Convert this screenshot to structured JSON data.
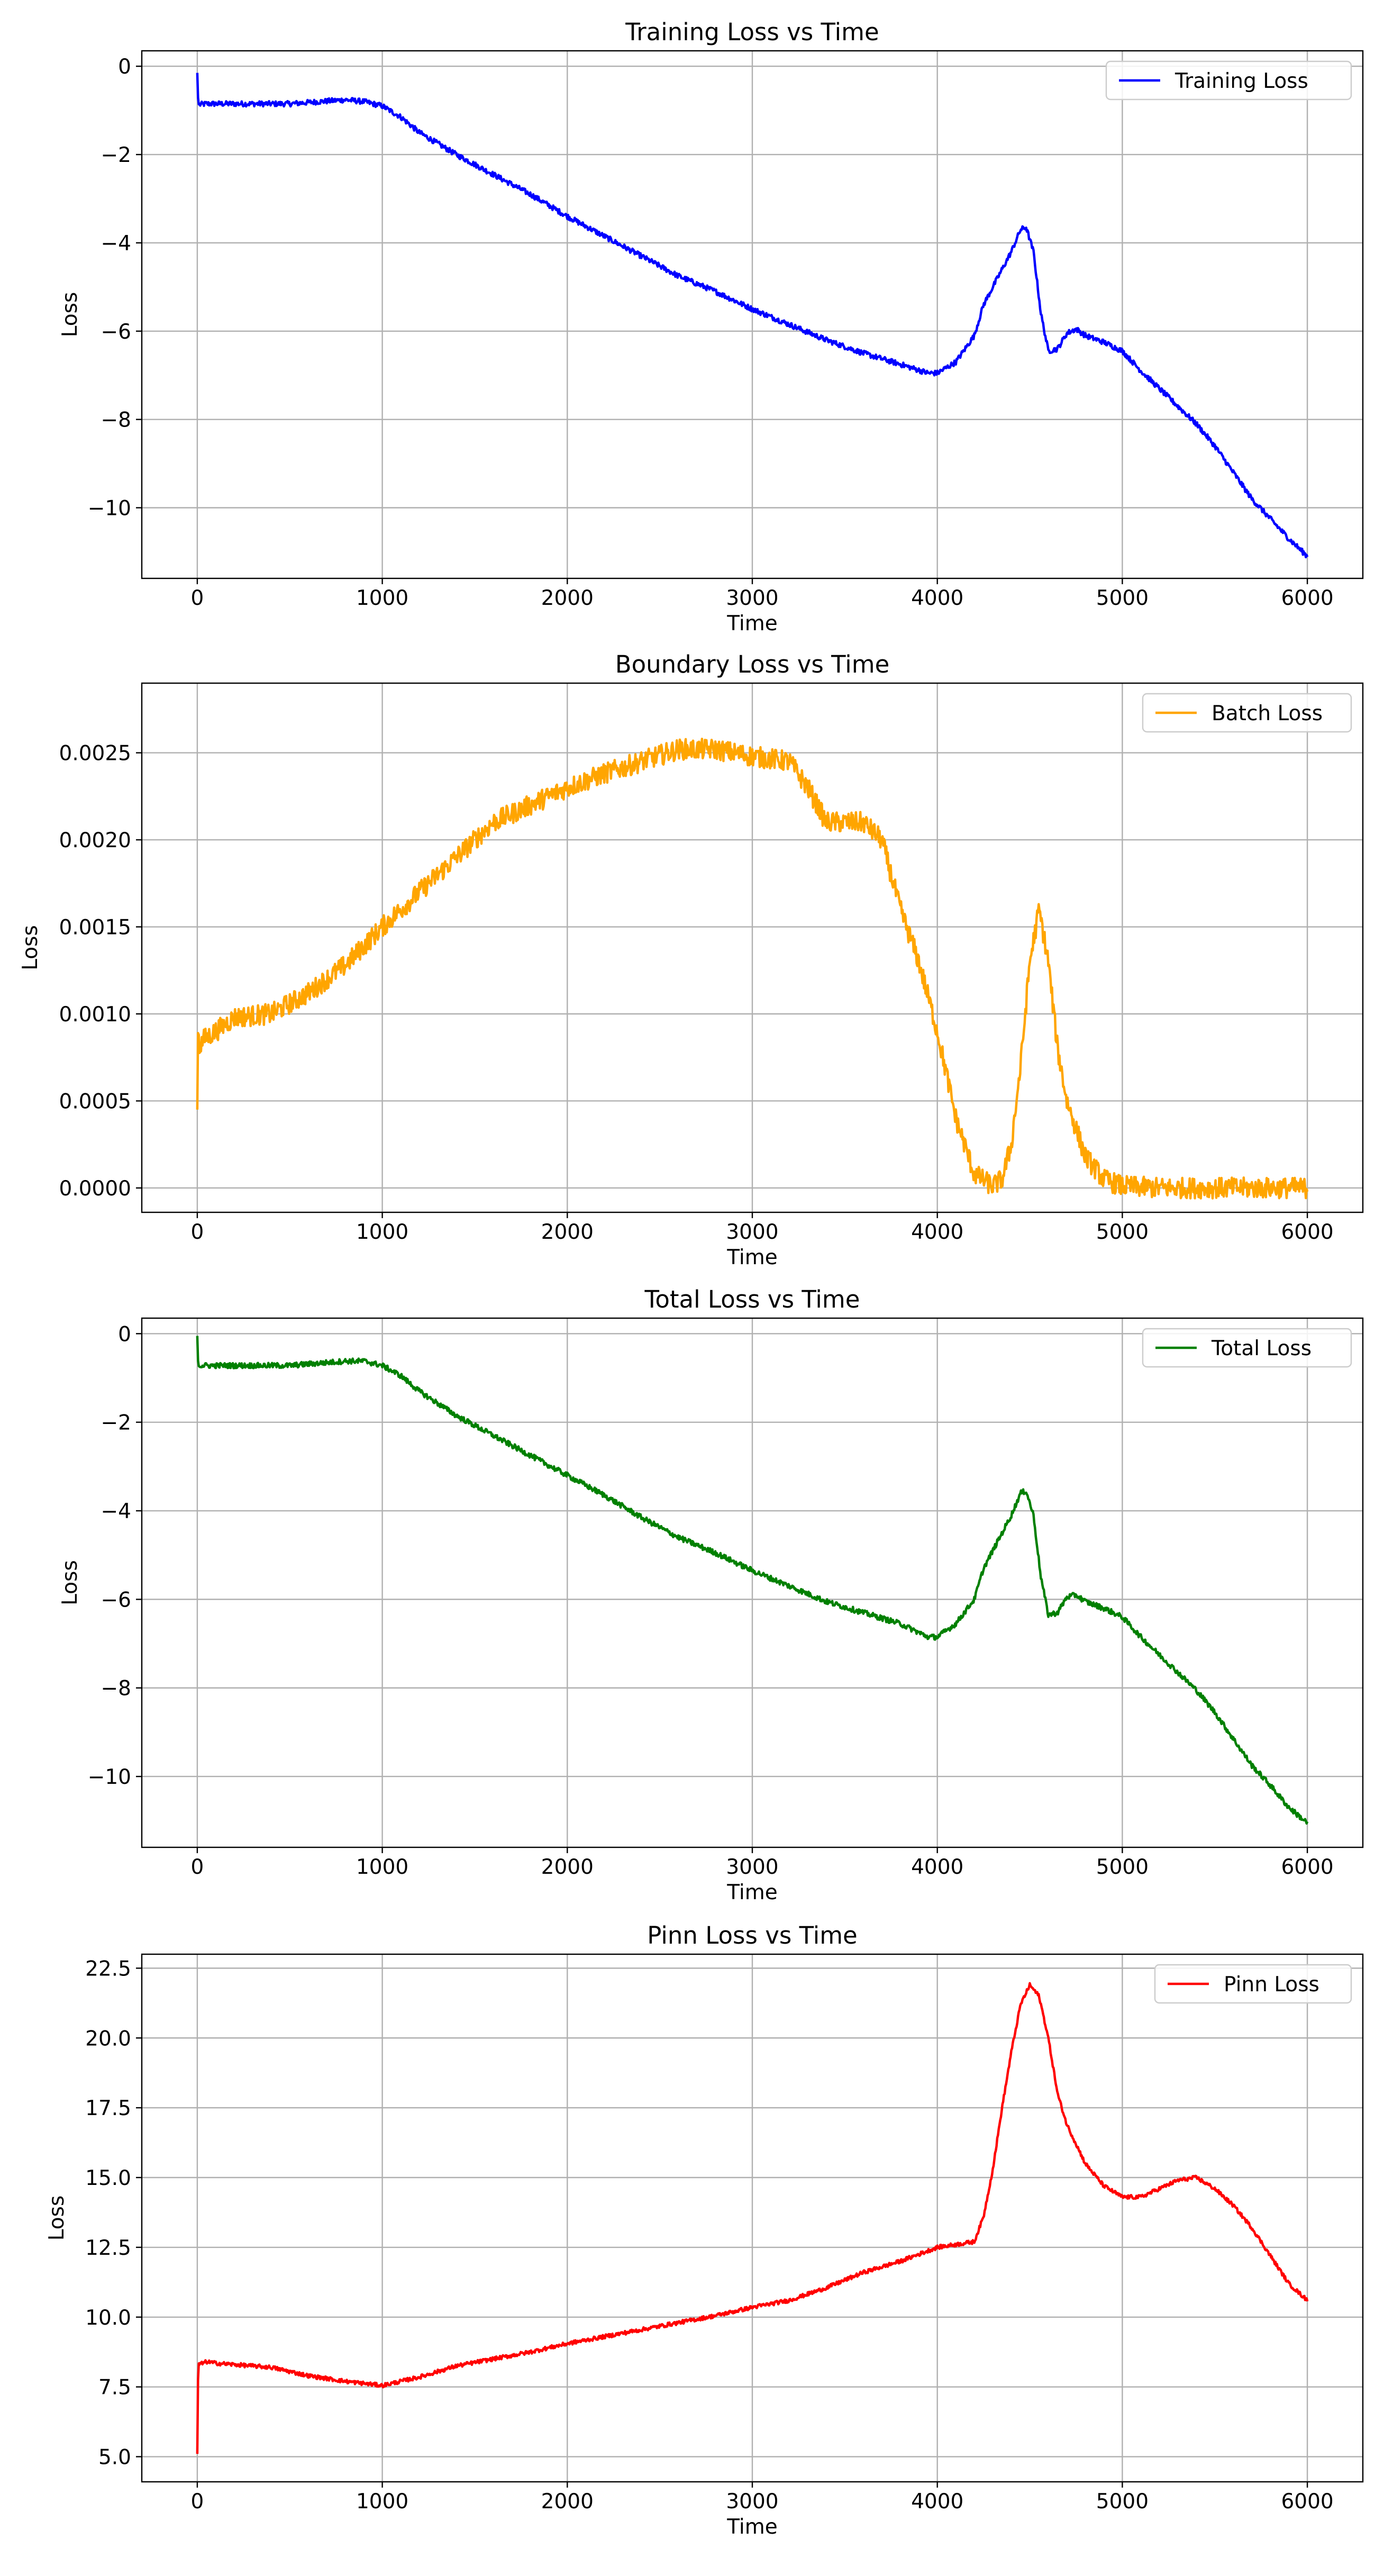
{
  "chart_data": [
    {
      "type": "line",
      "title": "Training Loss vs Time",
      "xlabel": "Time",
      "ylabel": "Loss",
      "xlim": [
        -300,
        6300
      ],
      "ylim": [
        -11.6,
        0.35
      ],
      "xticks": [
        0,
        1000,
        2000,
        3000,
        4000,
        5000,
        6000
      ],
      "xtick_labels": [
        "0",
        "1000",
        "2000",
        "3000",
        "4000",
        "5000",
        "6000"
      ],
      "yticks": [
        0,
        -2,
        -4,
        -6,
        -8,
        -10
      ],
      "ytick_labels": [
        "0",
        "−2",
        "−4",
        "−6",
        "−8",
        "−10"
      ],
      "grid": true,
      "legend_position": "top-right",
      "series": [
        {
          "name": "Training Loss",
          "color": "#0000ff",
          "noise": 0.06,
          "x": [
            0,
            5,
            10,
            50,
            200,
            500,
            800,
            900,
            1000,
            1100,
            1200,
            1400,
            1600,
            1800,
            2000,
            2200,
            2400,
            2600,
            2800,
            3000,
            3200,
            3400,
            3600,
            3800,
            3950,
            4000,
            4100,
            4200,
            4250,
            4300,
            4400,
            4450,
            4480,
            4520,
            4560,
            4600,
            4650,
            4700,
            4750,
            4800,
            4900,
            5000,
            5100,
            5200,
            5300,
            5400,
            5500,
            5600,
            5700,
            5800,
            5900,
            6000
          ],
          "y": [
            -0.15,
            -0.85,
            -0.87,
            -0.85,
            -0.85,
            -0.85,
            -0.76,
            -0.8,
            -0.9,
            -1.15,
            -1.5,
            -2.0,
            -2.45,
            -2.9,
            -3.4,
            -3.85,
            -4.3,
            -4.75,
            -5.1,
            -5.5,
            -5.85,
            -6.2,
            -6.5,
            -6.75,
            -6.95,
            -6.95,
            -6.7,
            -6.1,
            -5.4,
            -5.0,
            -4.2,
            -3.7,
            -3.65,
            -4.2,
            -5.6,
            -6.45,
            -6.4,
            -6.05,
            -5.95,
            -6.1,
            -6.25,
            -6.45,
            -6.9,
            -7.3,
            -7.7,
            -8.1,
            -8.6,
            -9.2,
            -9.8,
            -10.25,
            -10.7,
            -11.1
          ]
        }
      ]
    },
    {
      "type": "line",
      "title": "Boundary Loss vs Time",
      "xlabel": "Time",
      "ylabel": "Loss",
      "xlim": [
        -300,
        6300
      ],
      "ylim": [
        -0.00014,
        0.0029
      ],
      "xticks": [
        0,
        1000,
        2000,
        3000,
        4000,
        5000,
        6000
      ],
      "xtick_labels": [
        "0",
        "1000",
        "2000",
        "3000",
        "4000",
        "5000",
        "6000"
      ],
      "yticks": [
        0,
        0.0005,
        0.001,
        0.0015,
        0.002,
        0.0025
      ],
      "ytick_labels": [
        "0.0000",
        "0.0005",
        "0.0010",
        "0.0015",
        "0.0020",
        "0.0025"
      ],
      "grid": true,
      "legend_position": "top-right",
      "series": [
        {
          "name": "Batch Loss",
          "color": "#ffa500",
          "noise": 6e-05,
          "x": [
            0,
            5,
            10,
            30,
            100,
            200,
            400,
            600,
            800,
            1000,
            1200,
            1400,
            1600,
            1800,
            2000,
            2200,
            2400,
            2600,
            2800,
            3000,
            3200,
            3300,
            3400,
            3600,
            3700,
            3800,
            3900,
            4000,
            4100,
            4200,
            4300,
            4350,
            4400,
            4450,
            4500,
            4550,
            4600,
            4650,
            4700,
            4800,
            4900,
            5000,
            5200,
            5500,
            6000
          ],
          "y": [
            0.00045,
            0.001,
            0.0008,
            0.00085,
            0.0009,
            0.00098,
            0.001,
            0.00112,
            0.00128,
            0.0015,
            0.0017,
            0.0019,
            0.0021,
            0.0022,
            0.0023,
            0.00238,
            0.00245,
            0.00252,
            0.00252,
            0.00248,
            0.00245,
            0.0023,
            0.0021,
            0.0021,
            0.002,
            0.0016,
            0.0013,
            0.0009,
            0.0004,
            8e-05,
            1e-05,
            5e-05,
            0.00025,
            0.0007,
            0.0013,
            0.0016,
            0.0013,
            0.0008,
            0.0005,
            0.00018,
            5e-05,
            1e-05,
            0.0,
            0.0,
            0.0
          ]
        }
      ]
    },
    {
      "type": "line",
      "title": "Total Loss vs Time",
      "xlabel": "Time",
      "ylabel": "Loss",
      "xlim": [
        -300,
        6300
      ],
      "ylim": [
        -11.6,
        0.35
      ],
      "xticks": [
        0,
        1000,
        2000,
        3000,
        4000,
        5000,
        6000
      ],
      "xtick_labels": [
        "0",
        "1000",
        "2000",
        "3000",
        "4000",
        "5000",
        "6000"
      ],
      "yticks": [
        0,
        -2,
        -4,
        -6,
        -8,
        -10
      ],
      "ytick_labels": [
        "0",
        "−2",
        "−4",
        "−6",
        "−8",
        "−10"
      ],
      "grid": true,
      "legend_position": "top-right",
      "series": [
        {
          "name": "Total Loss",
          "color": "#008000",
          "noise": 0.06,
          "x": [
            0,
            5,
            10,
            50,
            200,
            500,
            800,
            900,
            1000,
            1100,
            1200,
            1400,
            1600,
            1800,
            2000,
            2200,
            2400,
            2600,
            2800,
            3000,
            3200,
            3400,
            3600,
            3800,
            3950,
            4000,
            4100,
            4200,
            4250,
            4300,
            4400,
            4450,
            4480,
            4520,
            4560,
            4600,
            4650,
            4700,
            4750,
            4800,
            4900,
            5000,
            5100,
            5200,
            5300,
            5400,
            5500,
            5600,
            5700,
            5800,
            5900,
            6000
          ],
          "y": [
            -0.05,
            -0.75,
            -0.72,
            -0.72,
            -0.72,
            -0.72,
            -0.62,
            -0.62,
            -0.72,
            -0.95,
            -1.3,
            -1.85,
            -2.3,
            -2.75,
            -3.2,
            -3.65,
            -4.15,
            -4.6,
            -4.95,
            -5.35,
            -5.7,
            -6.05,
            -6.3,
            -6.55,
            -6.85,
            -6.85,
            -6.55,
            -6.0,
            -5.3,
            -4.9,
            -4.1,
            -3.6,
            -3.55,
            -4.1,
            -5.5,
            -6.35,
            -6.3,
            -5.95,
            -5.9,
            -6.05,
            -6.2,
            -6.4,
            -6.85,
            -7.25,
            -7.65,
            -8.05,
            -8.55,
            -9.15,
            -9.75,
            -10.2,
            -10.7,
            -11.05
          ]
        }
      ]
    },
    {
      "type": "line",
      "title": "Pinn Loss vs Time",
      "xlabel": "Time",
      "ylabel": "Loss",
      "xlim": [
        -300,
        6300
      ],
      "ylim": [
        4.1,
        23.0
      ],
      "xticks": [
        0,
        1000,
        2000,
        3000,
        4000,
        5000,
        6000
      ],
      "xtick_labels": [
        "0",
        "1000",
        "2000",
        "3000",
        "4000",
        "5000",
        "6000"
      ],
      "yticks": [
        5.0,
        7.5,
        10.0,
        12.5,
        15.0,
        17.5,
        20.0,
        22.5
      ],
      "ytick_labels": [
        "5.0",
        "7.5",
        "10.0",
        "12.5",
        "15.0",
        "17.5",
        "20.0",
        "22.5"
      ],
      "grid": true,
      "legend_position": "top-right",
      "series": [
        {
          "name": "Pinn Loss",
          "color": "#ff0000",
          "noise": 0.07,
          "x": [
            0,
            5,
            10,
            50,
            100,
            200,
            400,
            600,
            800,
            1000,
            1200,
            1400,
            1600,
            1800,
            2000,
            2200,
            2400,
            2600,
            2800,
            3000,
            3200,
            3400,
            3600,
            3800,
            4000,
            4100,
            4200,
            4250,
            4300,
            4350,
            4400,
            4450,
            4500,
            4550,
            4600,
            4650,
            4700,
            4800,
            4900,
            5000,
            5100,
            5200,
            5300,
            5400,
            5500,
            5600,
            5700,
            5800,
            5900,
            6000
          ],
          "y": [
            5.1,
            8.4,
            8.3,
            8.4,
            8.35,
            8.3,
            8.2,
            7.9,
            7.7,
            7.55,
            7.85,
            8.25,
            8.5,
            8.75,
            9.05,
            9.3,
            9.55,
            9.8,
            10.05,
            10.35,
            10.6,
            11.05,
            11.6,
            12.0,
            12.5,
            12.6,
            12.7,
            13.6,
            15.3,
            17.5,
            19.5,
            21.2,
            21.9,
            21.5,
            20.0,
            18.0,
            16.9,
            15.5,
            14.7,
            14.3,
            14.3,
            14.6,
            14.9,
            15.0,
            14.6,
            14.0,
            13.2,
            12.2,
            11.2,
            10.6
          ]
        }
      ]
    }
  ]
}
